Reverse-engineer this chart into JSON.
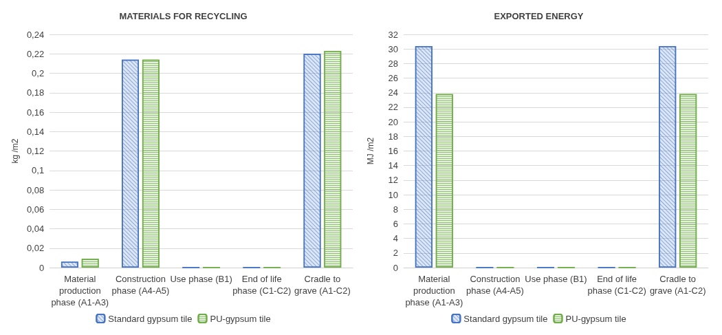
{
  "chart_data": [
    {
      "type": "bar",
      "title": "MATERIALS FOR RECYCLING",
      "ylabel": "kg /m2",
      "categories": [
        "Material production phase (A1-A3)",
        "Construction phase (A4-A5)",
        "Use phase (B1)",
        "End of life phase (C1-C2)",
        "Cradle to grave (A1-C2)"
      ],
      "series": [
        {
          "name": "Standard gypsum tile",
          "color": "#4472c4",
          "values": [
            0.006,
            0.214,
            0,
            0,
            0.22
          ]
        },
        {
          "name": "PU-gypsum tile",
          "color": "#70ad47",
          "values": [
            0.009,
            0.214,
            0,
            0,
            0.223
          ]
        }
      ],
      "ylim": [
        0,
        0.24
      ],
      "yticks": [
        {
          "value": 0,
          "label": "0"
        },
        {
          "value": 0.02,
          "label": "0,02"
        },
        {
          "value": 0.04,
          "label": "0,04"
        },
        {
          "value": 0.06,
          "label": "0,06"
        },
        {
          "value": 0.08,
          "label": "0,08"
        },
        {
          "value": 0.1,
          "label": "0,1"
        },
        {
          "value": 0.12,
          "label": "0,12"
        },
        {
          "value": 0.14,
          "label": "0,14"
        },
        {
          "value": 0.16,
          "label": "0,16"
        },
        {
          "value": 0.18,
          "label": "0,18"
        },
        {
          "value": 0.2,
          "label": "0,2"
        },
        {
          "value": 0.22,
          "label": "0,22"
        },
        {
          "value": 0.24,
          "label": "0,24"
        }
      ],
      "grid": "y",
      "legend": "bottom"
    },
    {
      "type": "bar",
      "title": "EXPORTED ENERGY",
      "ylabel": "MJ /m2",
      "categories": [
        "Material production phase (A1-A3)",
        "Construction phase (A4-A5)",
        "Use phase (B1)",
        "End of life phase (C1-C2)",
        "Cradle to grave (A1-C2)"
      ],
      "series": [
        {
          "name": "Standard gypsum tile",
          "color": "#4472c4",
          "values": [
            30.4,
            0,
            0,
            0,
            30.4
          ]
        },
        {
          "name": "PU-gypsum tile",
          "color": "#70ad47",
          "values": [
            23.8,
            0,
            0,
            0,
            23.8
          ]
        }
      ],
      "ylim": [
        0,
        32
      ],
      "yticks": [
        0,
        2,
        4,
        6,
        8,
        10,
        12,
        14,
        16,
        18,
        20,
        22,
        24,
        26,
        28,
        30,
        32
      ],
      "grid": "y",
      "legend": "bottom"
    }
  ]
}
